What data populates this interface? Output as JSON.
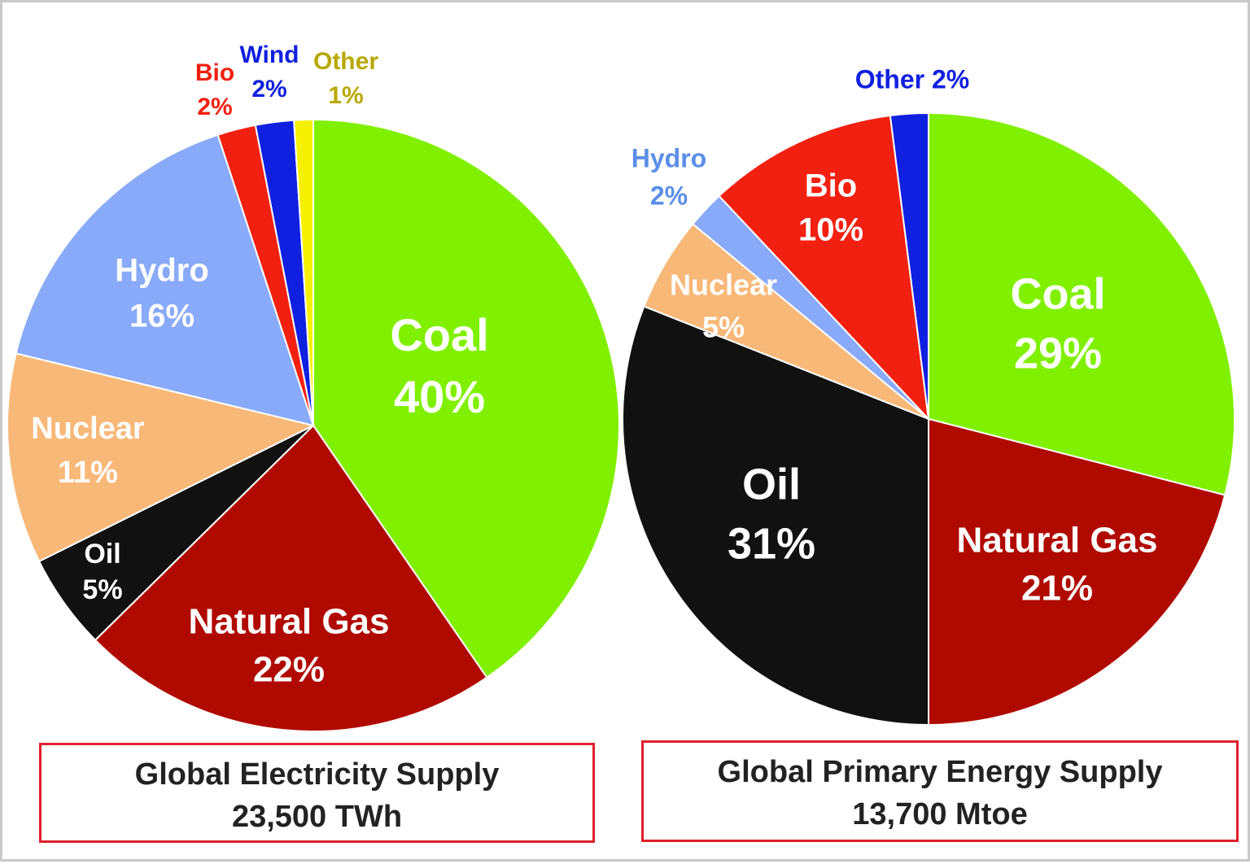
{
  "chart_data": [
    {
      "type": "pie",
      "title": "Global Electricity Supply",
      "subtitle": "23,500 TWh",
      "slices": [
        {
          "name": "Coal",
          "value": 40,
          "label": "40%",
          "color": "#80f000"
        },
        {
          "name": "Natural Gas",
          "value": 22,
          "label": "22%",
          "color": "#b00a00"
        },
        {
          "name": "Oil",
          "value": 5,
          "label": "5%",
          "color": "#111111"
        },
        {
          "name": "Nuclear",
          "value": 11,
          "label": "11%",
          "color": "#f8b878"
        },
        {
          "name": "Hydro",
          "value": 16,
          "label": "16%",
          "color": "#88aaf8"
        },
        {
          "name": "Bio",
          "value": 2,
          "label": "2%",
          "color": "#f22010"
        },
        {
          "name": "Wind",
          "value": 2,
          "label": "2%",
          "color": "#1020e0"
        },
        {
          "name": "Other",
          "value": 1,
          "label": "1%",
          "color": "#f4f000"
        }
      ]
    },
    {
      "type": "pie",
      "title": "Global Primary Energy Supply",
      "subtitle": "13,700 Mtoe",
      "slices": [
        {
          "name": "Coal",
          "value": 29,
          "label": "29%",
          "color": "#80f000"
        },
        {
          "name": "Natural Gas",
          "value": 21,
          "label": "21%",
          "color": "#b00a00"
        },
        {
          "name": "Oil",
          "value": 31,
          "label": "31%",
          "color": "#111111"
        },
        {
          "name": "Nuclear",
          "value": 5,
          "label": "5%",
          "color": "#f8b878"
        },
        {
          "name": "Hydro",
          "value": 2,
          "label": "2%",
          "color": "#88aaf8"
        },
        {
          "name": "Bio",
          "value": 10,
          "label": "10%",
          "color": "#f22010"
        },
        {
          "name": "Other",
          "value": 2,
          "label": "2%",
          "color": "#1020e0"
        }
      ]
    }
  ],
  "label_colors": {
    "inside": "#ffffff",
    "outside_bio": "#f22010",
    "outside_wind": "#1020e0",
    "outside_other_1": "#b8a800",
    "outside_other_2": "#1020e0",
    "outside_hydro_2": "#5b8ee8"
  }
}
